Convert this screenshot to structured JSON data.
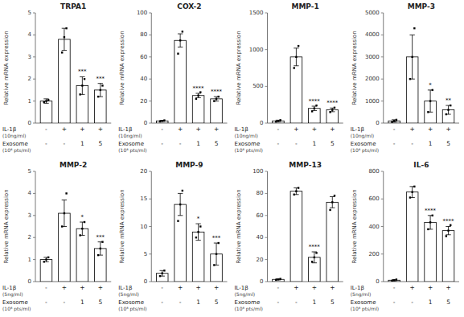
{
  "chart_data": [
    {
      "type": "bar",
      "title": "TRPA1",
      "y_label": "Relative mRNA expression",
      "ylim": [
        0,
        5
      ],
      "yticks": [
        0,
        1,
        2,
        3,
        4,
        5
      ],
      "values": [
        1.0,
        3.8,
        1.7,
        1.5
      ],
      "errors": [
        0.1,
        0.5,
        0.4,
        0.3
      ],
      "points": [
        [
          0.95,
          1.0,
          1.05
        ],
        [
          3.2,
          3.9,
          4.3
        ],
        [
          1.3,
          1.7,
          2.0
        ],
        [
          1.2,
          1.5,
          1.7
        ]
      ],
      "significance": [
        null,
        null,
        "***",
        "***"
      ],
      "condition_rows": [
        {
          "label": "IL-1β",
          "sublabel": "(10ng/ml)",
          "entries": [
            "-",
            "+",
            "+",
            "+"
          ]
        },
        {
          "label": "Exosome",
          "sublabel": "(10⁸ pts/ml)",
          "entries": [
            "-",
            "-",
            "1",
            "5"
          ]
        }
      ],
      "color": "#ffffff",
      "grid": false,
      "tick_labels": "y"
    },
    {
      "type": "bar",
      "title": "COX-2",
      "y_label": "Relative mRNA expression",
      "ylim": [
        0,
        100
      ],
      "yticks": [
        0,
        20,
        40,
        60,
        80,
        100
      ],
      "values": [
        2.0,
        75.0,
        25.0,
        22.0
      ],
      "errors": [
        0.5,
        6.0,
        2.0,
        2.0
      ],
      "points": [
        [
          1.5,
          2.0,
          2.5
        ],
        [
          63.0,
          75.0,
          83.0
        ],
        [
          22.0,
          25.0,
          28.0
        ],
        [
          20.0,
          22.0,
          24.0
        ]
      ],
      "significance": [
        null,
        null,
        "****",
        "****"
      ],
      "condition_rows": [
        {
          "label": "IL-1β",
          "sublabel": "(10ng/ml)",
          "entries": [
            "-",
            "+",
            "+",
            "+"
          ]
        },
        {
          "label": "Exosome",
          "sublabel": "(10⁸ pts/ml)",
          "entries": [
            "-",
            "-",
            "1",
            "5"
          ]
        }
      ],
      "color": "#ffffff",
      "grid": false,
      "tick_labels": "y"
    },
    {
      "type": "bar",
      "title": "MMP-1",
      "y_label": "Relative mRNA expression",
      "ylim": [
        0,
        1500
      ],
      "yticks": [
        0,
        500,
        1000,
        1500
      ],
      "values": [
        30.0,
        900.0,
        200.0,
        180.0
      ],
      "errors": [
        10.0,
        120.0,
        30.0,
        25.0
      ],
      "points": [
        [
          20.0,
          30.0,
          40.0
        ],
        [
          750.0,
          900.0,
          1050.0
        ],
        [
          160.0,
          200.0,
          240.0
        ],
        [
          150.0,
          180.0,
          210.0
        ]
      ],
      "significance": [
        null,
        null,
        "****",
        "****"
      ],
      "condition_rows": [
        {
          "label": "IL-1β",
          "sublabel": "(10ng/ml)",
          "entries": [
            "-",
            "+",
            "+",
            "+"
          ]
        },
        {
          "label": "Exosome",
          "sublabel": "(10⁸ pts/ml)",
          "entries": [
            "-",
            "-",
            "1",
            "5"
          ]
        }
      ],
      "color": "#ffffff",
      "grid": false,
      "tick_labels": "y"
    },
    {
      "type": "bar",
      "title": "MMP-3",
      "y_label": "Relative mRNA expression",
      "ylim": [
        0,
        5000
      ],
      "yticks": [
        0,
        1000,
        2000,
        3000,
        4000,
        5000
      ],
      "values": [
        100.0,
        3000.0,
        1000.0,
        600.0
      ],
      "errors": [
        50.0,
        1000.0,
        500.0,
        200.0
      ],
      "points": [
        [
          50.0,
          100.0,
          150.0
        ],
        [
          2000.0,
          3000.0,
          4300.0
        ],
        [
          500.0,
          1000.0,
          1500.0
        ],
        [
          400.0,
          600.0,
          800.0
        ]
      ],
      "significance": [
        null,
        null,
        "*",
        "**"
      ],
      "condition_rows": [
        {
          "label": "IL-1β",
          "sublabel": "(10ng/ml)",
          "entries": [
            "-",
            "+",
            "+",
            "+"
          ]
        },
        {
          "label": "Exosome",
          "sublabel": "(10⁸ pts/ml)",
          "entries": [
            "-",
            "-",
            "1",
            "5"
          ]
        }
      ],
      "color": "#ffffff",
      "grid": false,
      "tick_labels": "y"
    },
    {
      "type": "bar",
      "title": "MMP-2",
      "y_label": "Relative mRNA expression",
      "ylim": [
        0,
        5
      ],
      "yticks": [
        0,
        1,
        2,
        3,
        4,
        5
      ],
      "values": [
        1.0,
        3.1,
        2.4,
        1.5
      ],
      "errors": [
        0.1,
        0.6,
        0.3,
        0.3
      ],
      "points": [
        [
          0.9,
          1.0,
          1.1
        ],
        [
          2.5,
          3.1,
          4.0
        ],
        [
          2.1,
          2.4,
          2.7
        ],
        [
          1.2,
          1.5,
          1.8
        ]
      ],
      "significance": [
        null,
        null,
        "*",
        "***"
      ],
      "condition_rows": [
        {
          "label": "IL-1β",
          "sublabel": "(5ng/ml)",
          "entries": [
            "-",
            "+",
            "+",
            "+"
          ]
        },
        {
          "label": "Exosome",
          "sublabel": "(10⁸ pts/ml)",
          "entries": [
            "-",
            "-",
            "1",
            "5"
          ]
        }
      ],
      "color": "#ffffff",
      "grid": false,
      "tick_labels": "y"
    },
    {
      "type": "bar",
      "title": "MMP-9",
      "y_label": "Relative mRNA expression",
      "ylim": [
        0,
        20
      ],
      "yticks": [
        0,
        5,
        10,
        15,
        20
      ],
      "values": [
        1.5,
        14.0,
        9.0,
        5.0
      ],
      "errors": [
        0.5,
        2.0,
        1.5,
        2.0
      ],
      "points": [
        [
          1.0,
          1.5,
          2.0
        ],
        [
          11.0,
          14.0,
          16.5
        ],
        [
          8.0,
          9.0,
          10.0
        ],
        [
          3.0,
          5.0,
          7.0
        ]
      ],
      "significance": [
        null,
        null,
        "*",
        "***"
      ],
      "condition_rows": [
        {
          "label": "IL-1β",
          "sublabel": "(5ng/ml)",
          "entries": [
            "-",
            "+",
            "+",
            "+"
          ]
        },
        {
          "label": "Exosome",
          "sublabel": "(10⁸ pts/ml)",
          "entries": [
            "-",
            "-",
            "1",
            "5"
          ]
        }
      ],
      "color": "#ffffff",
      "grid": false,
      "tick_labels": "y"
    },
    {
      "type": "bar",
      "title": "MMP-13",
      "y_label": "Relative mRNA expression",
      "ylim": [
        0,
        100
      ],
      "yticks": [
        0,
        20,
        40,
        60,
        80,
        100
      ],
      "values": [
        2.0,
        82.0,
        22.0,
        72.0
      ],
      "errors": [
        0.5,
        3.0,
        5.0,
        5.0
      ],
      "points": [
        [
          1.5,
          2.0,
          2.5
        ],
        [
          79.0,
          82.0,
          85.0
        ],
        [
          18.0,
          22.0,
          26.0
        ],
        [
          65.0,
          72.0,
          78.0
        ]
      ],
      "significance": [
        null,
        null,
        "****",
        null
      ],
      "condition_rows": [
        {
          "label": "IL-1β",
          "sublabel": "(5ng/ml)",
          "entries": [
            "-",
            "+",
            "+",
            "+"
          ]
        },
        {
          "label": "Exosome",
          "sublabel": "(10⁸ pts/ml)",
          "entries": [
            "-",
            "-",
            "1",
            "5"
          ]
        }
      ],
      "color": "#ffffff",
      "grid": false,
      "tick_labels": "y"
    },
    {
      "type": "bar",
      "title": "IL-6",
      "y_label": "Relative mRNA expression",
      "ylim": [
        0,
        800
      ],
      "yticks": [
        0,
        200,
        400,
        600,
        800
      ],
      "values": [
        10.0,
        650.0,
        430.0,
        370.0
      ],
      "errors": [
        5.0,
        40.0,
        50.0,
        30.0
      ],
      "points": [
        [
          5.0,
          10.0,
          15.0
        ],
        [
          610.0,
          650.0,
          690.0
        ],
        [
          380.0,
          430.0,
          480.0
        ],
        [
          330.0,
          370.0,
          410.0
        ]
      ],
      "significance": [
        null,
        null,
        "****",
        "****"
      ],
      "condition_rows": [
        {
          "label": "IL-1β",
          "sublabel": "(5ng/ml)",
          "entries": [
            "-",
            "+",
            "+",
            "+"
          ]
        },
        {
          "label": "Exosome",
          "sublabel": "(10⁸ pts/ml)",
          "entries": [
            "-",
            "-",
            "1",
            "5"
          ]
        }
      ],
      "color": "#ffffff",
      "grid": false,
      "tick_labels": "y"
    }
  ]
}
